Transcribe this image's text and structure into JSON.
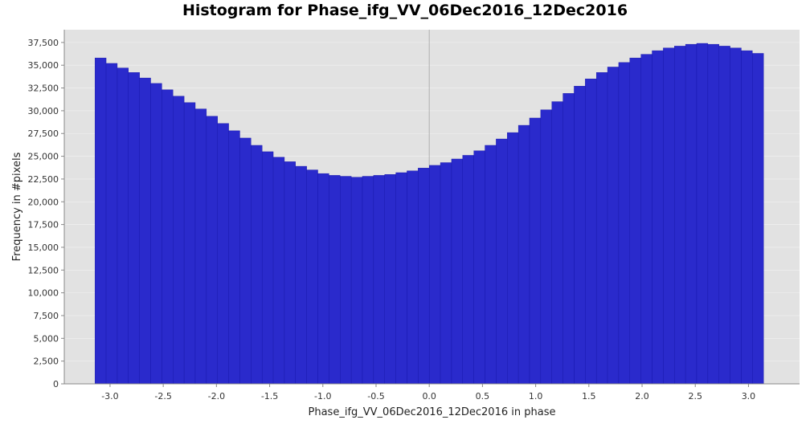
{
  "chart_data": {
    "type": "bar",
    "title": "Histogram for Phase_ifg_VV_06Dec2016_12Dec2016",
    "xlabel": "Phase_ifg_VV_06Dec2016_12Dec2016 in phase",
    "ylabel": "Frequency in #pixels",
    "xlim": [
      -3.43,
      3.48
    ],
    "ylim": [
      0,
      38900
    ],
    "x_ticks": [
      -3.0,
      -2.5,
      -2.0,
      -1.5,
      -1.0,
      -0.5,
      0.0,
      0.5,
      1.0,
      1.5,
      2.0,
      2.5,
      3.0
    ],
    "x_tick_labels": [
      "-3.0",
      "-2.5",
      "-2.0",
      "-1.5",
      "-1.0",
      "-0.5",
      "0.0",
      "0.5",
      "1.0",
      "1.5",
      "2.0",
      "2.5",
      "3.0"
    ],
    "y_ticks": [
      0,
      2500,
      5000,
      7500,
      10000,
      12500,
      15000,
      17500,
      20000,
      22500,
      25000,
      27500,
      30000,
      32500,
      35000,
      37500
    ],
    "y_tick_labels": [
      "0",
      "2,500",
      "5,000",
      "7,500",
      "10,000",
      "12,500",
      "15,000",
      "17,500",
      "20,000",
      "22,500",
      "25,000",
      "27,500",
      "30,000",
      "32,500",
      "35,000",
      "37,500"
    ],
    "bin_range": [
      -3.1416,
      3.1416
    ],
    "bin_count": 60,
    "bin_centers": [
      -3.09,
      -2.98,
      -2.88,
      -2.78,
      -2.67,
      -2.57,
      -2.46,
      -2.36,
      -2.25,
      -2.15,
      -2.04,
      -1.94,
      -1.83,
      -1.73,
      -1.62,
      -1.52,
      -1.41,
      -1.31,
      -1.2,
      -1.1,
      -0.99,
      -0.89,
      -0.79,
      -0.68,
      -0.58,
      -0.47,
      -0.37,
      -0.26,
      -0.16,
      -0.05,
      0.05,
      0.16,
      0.26,
      0.37,
      0.47,
      0.58,
      0.68,
      0.79,
      0.89,
      0.99,
      1.1,
      1.2,
      1.31,
      1.41,
      1.52,
      1.62,
      1.73,
      1.83,
      1.94,
      2.04,
      2.15,
      2.25,
      2.36,
      2.46,
      2.57,
      2.67,
      2.78,
      2.88,
      2.98,
      3.09
    ],
    "values": [
      35800,
      35200,
      34700,
      34200,
      33600,
      33000,
      32300,
      31600,
      30900,
      30200,
      29400,
      28600,
      27800,
      27000,
      26200,
      25500,
      24900,
      24400,
      23900,
      23500,
      23100,
      22900,
      22800,
      22700,
      22800,
      22900,
      23000,
      23200,
      23400,
      23700,
      24000,
      24300,
      24700,
      25100,
      25600,
      26200,
      26900,
      27600,
      28400,
      29200,
      30100,
      31000,
      31900,
      32700,
      33500,
      34200,
      34800,
      35300,
      35800,
      36200,
      36600,
      36900,
      37100,
      37300,
      37400,
      37300,
      37100,
      36900,
      36600,
      36300
    ],
    "grid": true,
    "vertical_marker_at": 0.0,
    "legend": "none",
    "colors": {
      "bar": "#2a2acc",
      "bar_edge": "#1414a8",
      "plot_background": "#e2e2e2",
      "marker_line": "#b0b0b0",
      "axis": "#888888"
    }
  }
}
